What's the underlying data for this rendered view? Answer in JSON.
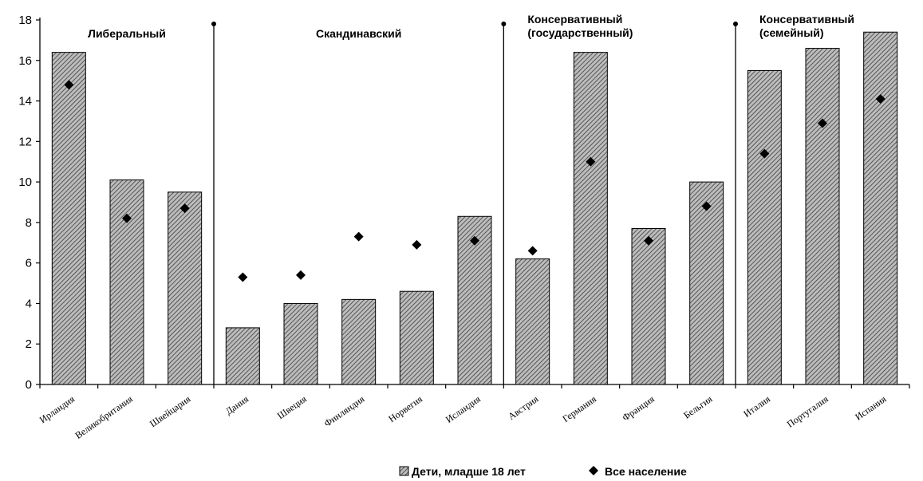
{
  "chart_data": {
    "type": "bar",
    "categories": [
      "Ирландия",
      "Великобритания",
      "Швейцария",
      "Дания",
      "Швеция",
      "Финляндия",
      "Норвегия",
      "Исландия",
      "Австрия",
      "Германия",
      "Франция",
      "Бельгия",
      "Италия",
      "Португалия",
      "Испания"
    ],
    "series": [
      {
        "name": "Дети, младше 18 лет",
        "kind": "bar",
        "values": [
          16.4,
          10.1,
          9.5,
          2.8,
          4.0,
          4.2,
          4.6,
          8.3,
          6.2,
          16.4,
          7.7,
          10.0,
          15.5,
          16.6,
          17.4
        ]
      },
      {
        "name": "Все население",
        "kind": "marker",
        "values": [
          14.8,
          8.2,
          8.7,
          5.3,
          5.4,
          7.3,
          6.9,
          7.1,
          6.6,
          11.0,
          7.1,
          8.8,
          11.4,
          12.9,
          14.1
        ]
      }
    ],
    "regimes": [
      {
        "label_lines": [
          "Либеральный"
        ],
        "start_index": 0
      },
      {
        "label_lines": [
          "Скандинавский"
        ],
        "start_index": 3
      },
      {
        "label_lines": [
          "Консервативный",
          "(государственный)"
        ],
        "start_index": 8
      },
      {
        "label_lines": [
          "Консервативный",
          "(семейный)"
        ],
        "start_index": 12
      }
    ],
    "ylim": [
      0,
      18
    ],
    "yticks": [
      0,
      2,
      4,
      6,
      8,
      10,
      12,
      14,
      16,
      18
    ],
    "title": "",
    "xlabel": "",
    "ylabel": "",
    "legend": {
      "position": "bottom"
    },
    "grid": false,
    "colors": {
      "bar_fill": "#bcbcbc",
      "hatch": "#3a3a3a",
      "marker": "#000000",
      "axis": "#000000"
    }
  }
}
